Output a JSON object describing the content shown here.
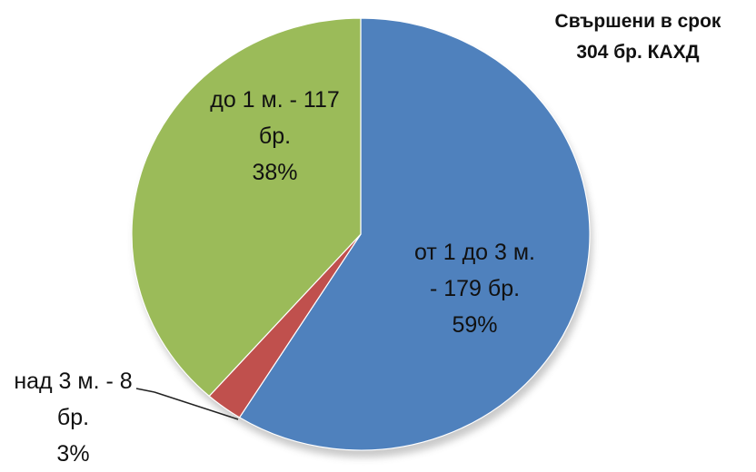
{
  "chart_data": {
    "type": "pie",
    "title": "Свършени в срок",
    "subtitle": "304 бр. КАХД",
    "categories": [
      "от 1 до 3 м. -",
      "над 3 м. -",
      "до 1 м. -"
    ],
    "values": [
      179,
      8,
      117
    ],
    "value_labels": [
      "179 бр.",
      "8 бр.",
      "117 бр."
    ],
    "percentages": [
      59,
      3,
      38
    ],
    "percentage_labels": [
      "59%",
      "3%",
      "38%"
    ],
    "colors": [
      "#4f81bd",
      "#c0504d",
      "#9bbb59"
    ]
  }
}
